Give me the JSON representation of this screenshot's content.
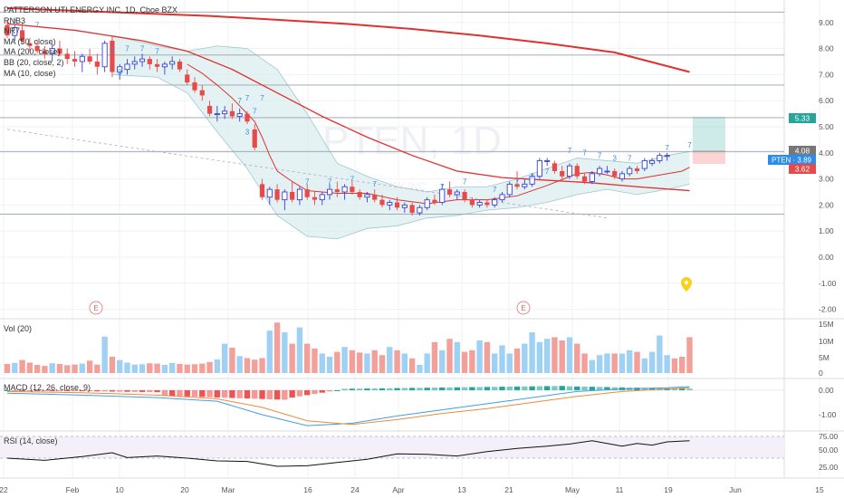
{
  "header": {
    "symbol_line": "PATTERSON UTI ENERGY INC, 1D, Cboe BZX"
  },
  "legend": [
    "RNB3",
    "NR7",
    "MA (50, close)",
    "MA (200, close)",
    "BB (20, close, 2)",
    "MA (10, close)"
  ],
  "watermark": {
    "big": "PTEN, 1D",
    "small": "PATTERSON UTI ENERGY INC"
  },
  "panes": {
    "vol_label": "Vol (20)",
    "macd_label": "MACD (12, 26, close, 9)",
    "rsi_label": "RSI (14, close)"
  },
  "badges": {
    "price_top": "5.33",
    "price_last": "4.08",
    "ticker_price": "PTEN · 3.89",
    "price_stop": "3.62"
  },
  "markers": {
    "earnings_a": "E",
    "earnings_b": "E"
  },
  "colors": {
    "up": "#3a3fd8",
    "down": "#e84a4a",
    "ma200": "#e03030",
    "ma50": "#e03030",
    "ma10": "#e03030",
    "bb_fill": "#d8ecee",
    "vol_up": "#9fd1f5",
    "vol_down": "#f3a09a",
    "macd_line": "#3fa0e0",
    "signal_line": "#f08a3a",
    "hist_pos": "#26a69a",
    "hist_neg": "#ef5350",
    "rsi": "#111111",
    "ticker_badge": "#2b8ceb",
    "stop_badge": "#e84a4a",
    "top_badge": "#26a69a",
    "last_badge": "#777777",
    "pin": "#f6d21a"
  },
  "chart_data": {
    "type": "candlestick",
    "price_axis": {
      "ticks": [
        "9.00",
        "8.00",
        "7.00",
        "6.00",
        "5.00",
        "4.00",
        "3.00",
        "2.00",
        "1.00",
        "0.00",
        "-1.00",
        "-2.00"
      ],
      "ylim": [
        -2.0,
        9.6
      ]
    },
    "x_axis": {
      "ticks": [
        "22",
        "Feb",
        "10",
        "20",
        "Mar",
        "16",
        "24",
        "Apr",
        "13",
        "21",
        "May",
        "11",
        "19",
        "Jun",
        "15"
      ]
    },
    "horizontal_levels": [
      9.4,
      7.75,
      6.6,
      5.35,
      4.05,
      1.65
    ],
    "candles": [
      {
        "o": 8.9,
        "h": 9.1,
        "l": 8.4,
        "c": 8.5
      },
      {
        "o": 8.5,
        "h": 8.9,
        "l": 8.3,
        "c": 8.8
      },
      {
        "o": 8.7,
        "h": 9.0,
        "l": 8.2,
        "c": 8.3
      },
      {
        "o": 8.2,
        "h": 8.4,
        "l": 7.9,
        "c": 8.1
      },
      {
        "o": 8.1,
        "h": 8.3,
        "l": 7.8,
        "c": 7.9
      },
      {
        "o": 7.9,
        "h": 8.1,
        "l": 7.6,
        "c": 7.8
      },
      {
        "o": 7.8,
        "h": 8.2,
        "l": 7.5,
        "c": 8.0
      },
      {
        "o": 8.0,
        "h": 8.3,
        "l": 7.7,
        "c": 7.8
      },
      {
        "o": 7.8,
        "h": 8.0,
        "l": 7.4,
        "c": 7.6
      },
      {
        "o": 7.6,
        "h": 7.9,
        "l": 7.3,
        "c": 7.5
      },
      {
        "o": 7.5,
        "h": 7.8,
        "l": 7.1,
        "c": 7.7
      },
      {
        "o": 7.7,
        "h": 8.0,
        "l": 7.4,
        "c": 7.5
      },
      {
        "o": 7.5,
        "h": 7.8,
        "l": 7.0,
        "c": 7.3
      },
      {
        "o": 7.3,
        "h": 8.3,
        "l": 7.1,
        "c": 8.2
      },
      {
        "o": 8.3,
        "h": 8.5,
        "l": 6.9,
        "c": 7.1
      },
      {
        "o": 7.1,
        "h": 7.4,
        "l": 6.8,
        "c": 7.3
      },
      {
        "o": 7.2,
        "h": 7.6,
        "l": 7.0,
        "c": 7.4
      },
      {
        "o": 7.4,
        "h": 7.7,
        "l": 7.2,
        "c": 7.5
      },
      {
        "o": 7.5,
        "h": 7.8,
        "l": 7.3,
        "c": 7.6
      },
      {
        "o": 7.6,
        "h": 7.7,
        "l": 7.2,
        "c": 7.4
      },
      {
        "o": 7.4,
        "h": 7.6,
        "l": 7.1,
        "c": 7.3
      },
      {
        "o": 7.3,
        "h": 7.5,
        "l": 7.0,
        "c": 7.4
      },
      {
        "o": 7.4,
        "h": 7.7,
        "l": 7.2,
        "c": 7.5
      },
      {
        "o": 7.5,
        "h": 7.6,
        "l": 7.1,
        "c": 7.2
      },
      {
        "o": 7.0,
        "h": 7.2,
        "l": 6.6,
        "c": 6.7
      },
      {
        "o": 6.7,
        "h": 6.9,
        "l": 6.3,
        "c": 6.4
      },
      {
        "o": 6.4,
        "h": 6.6,
        "l": 6.0,
        "c": 6.2
      },
      {
        "o": 5.8,
        "h": 6.0,
        "l": 5.4,
        "c": 5.5
      },
      {
        "o": 5.5,
        "h": 5.8,
        "l": 5.2,
        "c": 5.5
      },
      {
        "o": 5.5,
        "h": 5.8,
        "l": 5.3,
        "c": 5.6
      },
      {
        "o": 5.6,
        "h": 5.9,
        "l": 5.3,
        "c": 5.4
      },
      {
        "o": 5.4,
        "h": 5.7,
        "l": 5.2,
        "c": 5.5
      },
      {
        "o": 5.5,
        "h": 5.6,
        "l": 5.1,
        "c": 5.2
      },
      {
        "o": 4.9,
        "h": 5.1,
        "l": 4.1,
        "c": 4.2
      },
      {
        "o": 2.8,
        "h": 3.0,
        "l": 2.2,
        "c": 2.3
      },
      {
        "o": 2.3,
        "h": 2.7,
        "l": 2.0,
        "c": 2.6
      },
      {
        "o": 2.6,
        "h": 2.8,
        "l": 2.1,
        "c": 2.2
      },
      {
        "o": 2.2,
        "h": 2.6,
        "l": 1.8,
        "c": 2.5
      },
      {
        "o": 2.5,
        "h": 2.9,
        "l": 2.1,
        "c": 2.2
      },
      {
        "o": 2.2,
        "h": 2.7,
        "l": 2.0,
        "c": 2.6
      },
      {
        "o": 2.6,
        "h": 2.8,
        "l": 2.2,
        "c": 2.3
      },
      {
        "o": 2.3,
        "h": 2.5,
        "l": 2.0,
        "c": 2.2
      },
      {
        "o": 2.2,
        "h": 2.5,
        "l": 2.0,
        "c": 2.4
      },
      {
        "o": 2.4,
        "h": 2.8,
        "l": 2.2,
        "c": 2.6
      },
      {
        "o": 2.6,
        "h": 2.9,
        "l": 2.3,
        "c": 2.5
      },
      {
        "o": 2.5,
        "h": 2.8,
        "l": 2.2,
        "c": 2.7
      },
      {
        "o": 2.7,
        "h": 2.9,
        "l": 2.4,
        "c": 2.5
      },
      {
        "o": 2.5,
        "h": 2.6,
        "l": 2.2,
        "c": 2.3
      },
      {
        "o": 2.3,
        "h": 2.5,
        "l": 2.1,
        "c": 2.4
      },
      {
        "o": 2.4,
        "h": 2.6,
        "l": 2.1,
        "c": 2.2
      },
      {
        "o": 2.2,
        "h": 2.4,
        "l": 1.9,
        "c": 2.0
      },
      {
        "o": 2.0,
        "h": 2.2,
        "l": 1.8,
        "c": 2.1
      },
      {
        "o": 2.1,
        "h": 2.3,
        "l": 1.8,
        "c": 1.9
      },
      {
        "o": 1.9,
        "h": 2.1,
        "l": 1.7,
        "c": 2.0
      },
      {
        "o": 2.0,
        "h": 2.1,
        "l": 1.6,
        "c": 1.7
      },
      {
        "o": 1.7,
        "h": 2.0,
        "l": 1.6,
        "c": 1.9
      },
      {
        "o": 1.9,
        "h": 2.3,
        "l": 1.8,
        "c": 2.2
      },
      {
        "o": 2.2,
        "h": 2.4,
        "l": 2.0,
        "c": 2.1
      },
      {
        "o": 2.1,
        "h": 2.8,
        "l": 2.0,
        "c": 2.6
      },
      {
        "o": 2.6,
        "h": 2.9,
        "l": 2.3,
        "c": 2.4
      },
      {
        "o": 2.4,
        "h": 2.6,
        "l": 2.2,
        "c": 2.5
      },
      {
        "o": 2.5,
        "h": 2.6,
        "l": 2.1,
        "c": 2.2
      },
      {
        "o": 2.2,
        "h": 2.3,
        "l": 1.9,
        "c": 2.0
      },
      {
        "o": 2.0,
        "h": 2.2,
        "l": 1.9,
        "c": 2.1
      },
      {
        "o": 2.1,
        "h": 2.2,
        "l": 1.9,
        "c": 2.0
      },
      {
        "o": 2.0,
        "h": 2.3,
        "l": 1.9,
        "c": 2.2
      },
      {
        "o": 2.2,
        "h": 2.5,
        "l": 2.1,
        "c": 2.4
      },
      {
        "o": 2.4,
        "h": 2.9,
        "l": 2.3,
        "c": 2.8
      },
      {
        "o": 2.8,
        "h": 3.3,
        "l": 2.6,
        "c": 2.7
      },
      {
        "o": 2.7,
        "h": 3.0,
        "l": 2.6,
        "c": 2.8
      },
      {
        "o": 2.8,
        "h": 3.2,
        "l": 2.7,
        "c": 3.1
      },
      {
        "o": 3.1,
        "h": 3.8,
        "l": 3.0,
        "c": 3.7
      },
      {
        "o": 3.7,
        "h": 3.8,
        "l": 3.5,
        "c": 3.7
      },
      {
        "o": 3.6,
        "h": 3.7,
        "l": 3.2,
        "c": 3.3
      },
      {
        "o": 3.3,
        "h": 3.5,
        "l": 3.0,
        "c": 3.1
      },
      {
        "o": 3.1,
        "h": 3.6,
        "l": 3.0,
        "c": 3.5
      },
      {
        "o": 3.5,
        "h": 3.6,
        "l": 3.0,
        "c": 3.1
      },
      {
        "o": 3.1,
        "h": 3.2,
        "l": 2.8,
        "c": 2.9
      },
      {
        "o": 2.9,
        "h": 3.3,
        "l": 2.8,
        "c": 3.2
      },
      {
        "o": 3.2,
        "h": 3.5,
        "l": 3.1,
        "c": 3.4
      },
      {
        "o": 3.3,
        "h": 3.5,
        "l": 3.2,
        "c": 3.3
      },
      {
        "o": 3.3,
        "h": 3.4,
        "l": 3.0,
        "c": 3.1
      },
      {
        "o": 3.0,
        "h": 3.3,
        "l": 2.9,
        "c": 3.2
      },
      {
        "o": 3.2,
        "h": 3.5,
        "l": 3.1,
        "c": 3.4
      },
      {
        "o": 3.4,
        "h": 3.5,
        "l": 3.2,
        "c": 3.3
      },
      {
        "o": 3.4,
        "h": 3.8,
        "l": 3.3,
        "c": 3.7
      },
      {
        "o": 3.6,
        "h": 3.8,
        "l": 3.5,
        "c": 3.7
      },
      {
        "o": 3.7,
        "h": 4.0,
        "l": 3.6,
        "c": 3.9
      },
      {
        "o": 3.9,
        "h": 4.0,
        "l": 3.7,
        "c": 3.9
      }
    ],
    "ma200": [
      [
        0,
        9.55
      ],
      [
        9,
        9.45
      ],
      [
        18,
        9.35
      ],
      [
        27,
        9.25
      ],
      [
        36,
        9.1
      ],
      [
        45,
        8.95
      ],
      [
        54,
        8.75
      ],
      [
        63,
        8.5
      ],
      [
        72,
        8.2
      ],
      [
        81,
        7.85
      ],
      [
        91,
        7.1
      ]
    ],
    "ma50": [
      [
        0,
        8.95
      ],
      [
        9,
        8.7
      ],
      [
        18,
        8.3
      ],
      [
        24,
        7.9
      ],
      [
        30,
        7.2
      ],
      [
        36,
        6.3
      ],
      [
        42,
        5.4
      ],
      [
        48,
        4.6
      ],
      [
        54,
        3.9
      ],
      [
        60,
        3.3
      ],
      [
        66,
        3.05
      ],
      [
        72,
        2.95
      ],
      [
        78,
        2.85
      ],
      [
        84,
        2.7
      ],
      [
        91,
        2.55
      ]
    ],
    "ma10": [
      [
        24,
        7.4
      ],
      [
        26,
        7.05
      ],
      [
        28,
        6.6
      ],
      [
        30,
        6.1
      ],
      [
        31,
        5.8
      ],
      [
        33,
        5.2
      ],
      [
        34,
        4.6
      ],
      [
        35,
        3.9
      ],
      [
        36,
        3.3
      ],
      [
        38,
        2.9
      ],
      [
        40,
        2.55
      ],
      [
        44,
        2.45
      ],
      [
        48,
        2.45
      ],
      [
        52,
        2.2
      ],
      [
        56,
        2.05
      ],
      [
        60,
        2.2
      ],
      [
        64,
        2.2
      ],
      [
        68,
        2.35
      ],
      [
        72,
        2.75
      ],
      [
        76,
        3.2
      ],
      [
        78,
        3.25
      ],
      [
        80,
        3.15
      ],
      [
        82,
        3.0
      ],
      [
        84,
        3.0
      ],
      [
        86,
        3.1
      ],
      [
        88,
        3.2
      ],
      [
        90,
        3.3
      ],
      [
        91,
        3.45
      ]
    ],
    "bb_upper": [
      [
        14,
        8.5
      ],
      [
        20,
        8.1
      ],
      [
        24,
        7.9
      ],
      [
        28,
        8.1
      ],
      [
        32,
        8.0
      ],
      [
        36,
        7.2
      ],
      [
        40,
        5.5
      ],
      [
        44,
        3.6
      ],
      [
        48,
        3.1
      ],
      [
        52,
        2.7
      ],
      [
        56,
        2.5
      ],
      [
        60,
        2.7
      ],
      [
        64,
        2.7
      ],
      [
        68,
        3.0
      ],
      [
        72,
        3.4
      ],
      [
        76,
        3.8
      ],
      [
        80,
        3.7
      ],
      [
        84,
        3.6
      ],
      [
        88,
        3.9
      ],
      [
        91,
        4.05
      ]
    ],
    "bb_lower": [
      [
        14,
        7.0
      ],
      [
        20,
        6.9
      ],
      [
        24,
        6.3
      ],
      [
        28,
        4.8
      ],
      [
        32,
        3.4
      ],
      [
        36,
        1.6
      ],
      [
        40,
        0.8
      ],
      [
        44,
        0.7
      ],
      [
        48,
        1.1
      ],
      [
        52,
        1.2
      ],
      [
        56,
        1.5
      ],
      [
        60,
        1.6
      ],
      [
        64,
        1.8
      ],
      [
        68,
        1.9
      ],
      [
        72,
        2.1
      ],
      [
        76,
        2.4
      ],
      [
        80,
        2.6
      ],
      [
        84,
        2.4
      ],
      [
        88,
        2.6
      ],
      [
        91,
        2.8
      ]
    ],
    "dashed_trend": [
      [
        0,
        4.9
      ],
      [
        80,
        1.5
      ]
    ],
    "volume_millions": [
      2.8,
      3.1,
      4.0,
      3.2,
      2.5,
      2.2,
      3.0,
      2.8,
      2.4,
      2.6,
      2.9,
      3.8,
      2.6,
      11.2,
      5.0,
      4.0,
      3.2,
      2.6,
      2.7,
      3.0,
      2.9,
      2.5,
      3.1,
      2.8,
      2.6,
      2.7,
      2.9,
      3.4,
      4.2,
      9.0,
      7.8,
      5.2,
      4.6,
      4.1,
      4.6,
      13.0,
      15.5,
      12.5,
      9.0,
      14.0,
      9.0,
      7.5,
      6.0,
      5.0,
      6.5,
      8.0,
      7.0,
      6.3,
      6.0,
      7.0,
      5.5,
      8.0,
      7.0,
      6.0,
      4.5,
      2.5,
      6.0,
      9.5,
      7.0,
      10.5,
      9.5,
      6.5,
      7.0,
      10.0,
      9.5,
      6.0,
      8.5,
      6.0,
      7.5,
      9.0,
      12.5,
      9.5,
      10.5,
      11.0,
      10.0,
      11.0,
      9.0,
      6.0,
      4.0,
      5.5,
      6.0,
      6.0,
      6.0,
      7.0,
      6.5,
      4.5,
      6.5,
      11.5,
      5.5,
      4.5,
      5.0,
      11.0
    ],
    "volume_axis": [
      "15M",
      "10M",
      "5M",
      "0"
    ],
    "macd_axis": [
      "0.00",
      "-1.00"
    ],
    "rsi_axis": [
      "75.00",
      "50.00",
      "25.00"
    ],
    "rsi_levels": [
      70,
      30
    ],
    "signal_labels": [
      "7",
      "7",
      "7",
      "7",
      "7",
      "7",
      "3",
      "7",
      "7",
      "7",
      "7",
      "3",
      "7",
      "7",
      "7",
      "7",
      "7",
      "7",
      "7",
      "7",
      "7",
      "7",
      "7",
      "7",
      "7",
      "3",
      "7",
      "7",
      "7"
    ]
  }
}
